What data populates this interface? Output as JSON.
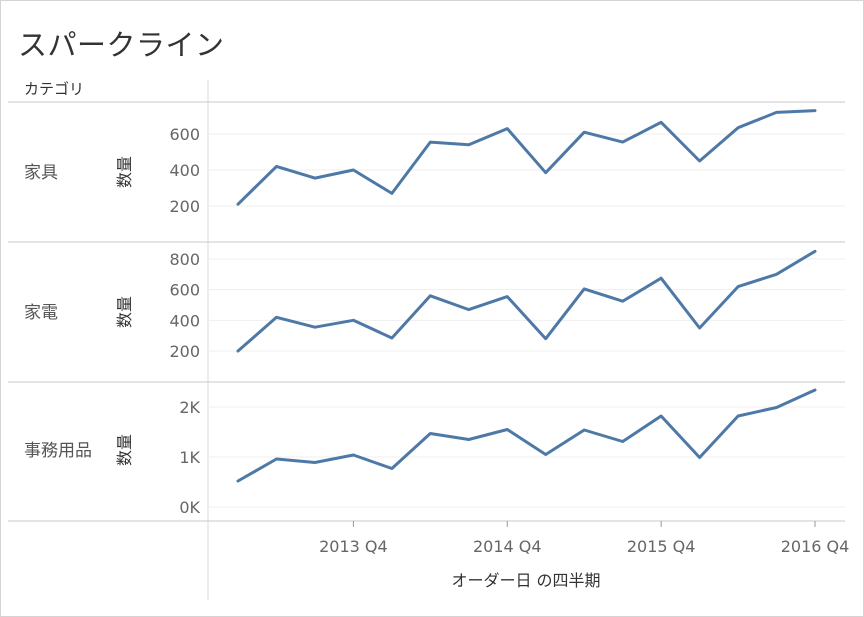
{
  "title": "スパークライン",
  "colors": {
    "line": "#4e79a7",
    "axis_text": "#666666",
    "grid": "#efefef",
    "divider": "#c8c8c8"
  },
  "chart_data": {
    "type": "line",
    "column_header": "カテゴリ",
    "xlabel": "オーダー日 の四半期",
    "x": [
      "2013 Q1",
      "2013 Q2",
      "2013 Q3",
      "2013 Q4",
      "2014 Q1",
      "2014 Q2",
      "2014 Q3",
      "2014 Q4",
      "2015 Q1",
      "2015 Q2",
      "2015 Q3",
      "2015 Q4",
      "2016 Q1",
      "2016 Q2",
      "2016 Q3",
      "2016 Q4"
    ],
    "x_tick_labels": [
      "2013 Q4",
      "2014 Q4",
      "2015 Q4",
      "2016 Q4"
    ],
    "grid": true,
    "panels": [
      {
        "category": "家具",
        "ylabel": "数量",
        "yticks": [
          "200",
          "400",
          "600"
        ],
        "values": [
          210,
          420,
          355,
          400,
          270,
          555,
          540,
          630,
          385,
          610,
          555,
          665,
          450,
          635,
          720,
          730
        ]
      },
      {
        "category": "家電",
        "ylabel": "数量",
        "yticks": [
          "200",
          "400",
          "600",
          "800"
        ],
        "values": [
          200,
          420,
          355,
          400,
          285,
          560,
          470,
          555,
          280,
          605,
          525,
          675,
          350,
          620,
          700,
          850
        ]
      },
      {
        "category": "事務用品",
        "ylabel": "数量",
        "yticks": [
          "0K",
          "1K",
          "2K"
        ],
        "values": [
          520,
          960,
          890,
          1040,
          770,
          1470,
          1350,
          1550,
          1050,
          1540,
          1310,
          1820,
          990,
          1820,
          1990,
          2340
        ]
      }
    ]
  }
}
